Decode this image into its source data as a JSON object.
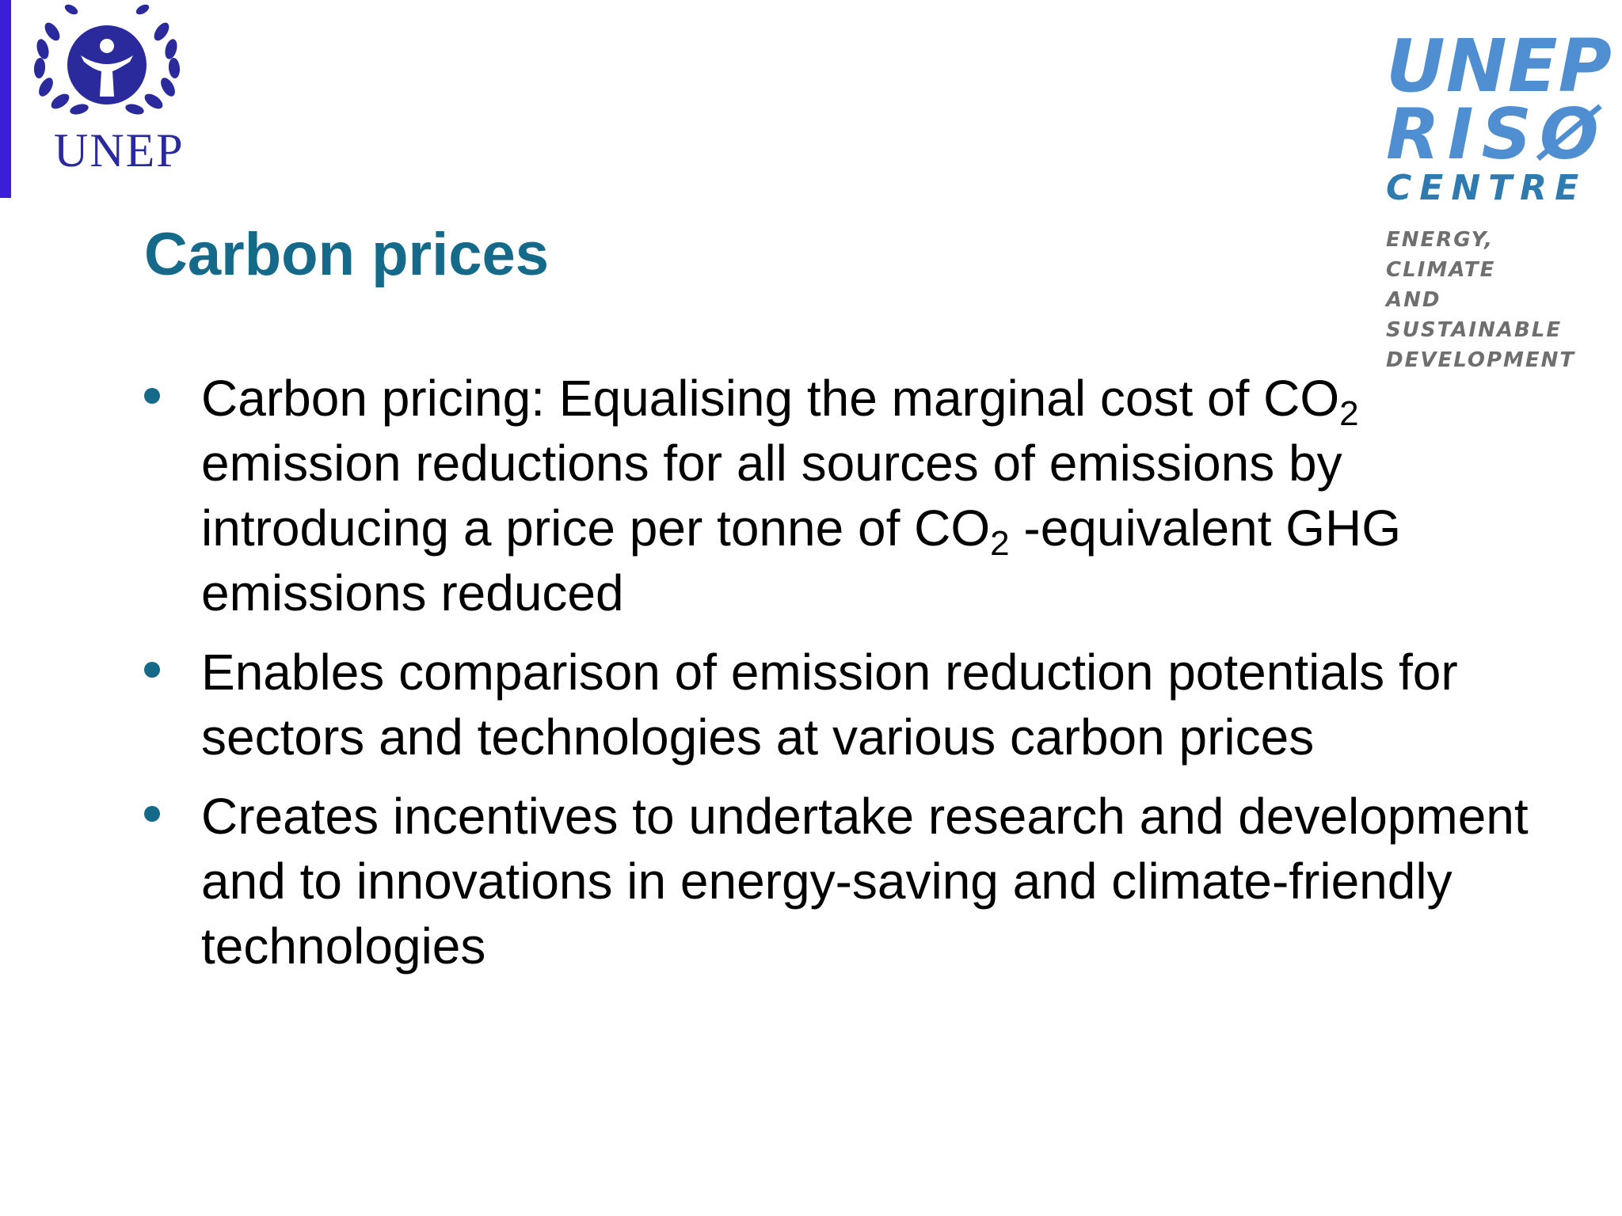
{
  "header": {
    "unep_logo": {
      "icon": "unep-emblem-icon",
      "wordmark": "UNEP",
      "colors": {
        "primary": "#2a2a9c",
        "bar": "#3a1fd6"
      }
    },
    "partner_logo": {
      "line1": "UNEP",
      "line2": "RISØ",
      "line3": "CENTRE",
      "tagline": [
        "ENERGY, CLIMATE",
        "AND SUSTAINABLE",
        "DEVELOPMENT"
      ],
      "colors": {
        "primary": "#4f8fd1",
        "secondary": "#2f7aae",
        "tagline": "#6f6f6f"
      }
    }
  },
  "slide": {
    "title": "Carbon prices",
    "title_color": "#156a8a",
    "bullets": [
      {
        "parts": [
          {
            "text": "Carbon pricing: Equalising the marginal cost of CO"
          },
          {
            "sub": "2"
          },
          {
            "text": " emission reductions for all sources of emissions by introducing a price per tonne of CO"
          },
          {
            "sub": "2"
          },
          {
            "text": " -equivalent GHG emissions reduced"
          }
        ]
      },
      {
        "parts": [
          {
            "text": "Enables comparison of emission reduction potentials for sectors and technologies at various carbon prices"
          }
        ]
      },
      {
        "parts": [
          {
            "text": "Creates incentives to undertake research and development and to innovations in energy-saving and climate-friendly technologies"
          }
        ]
      }
    ]
  }
}
